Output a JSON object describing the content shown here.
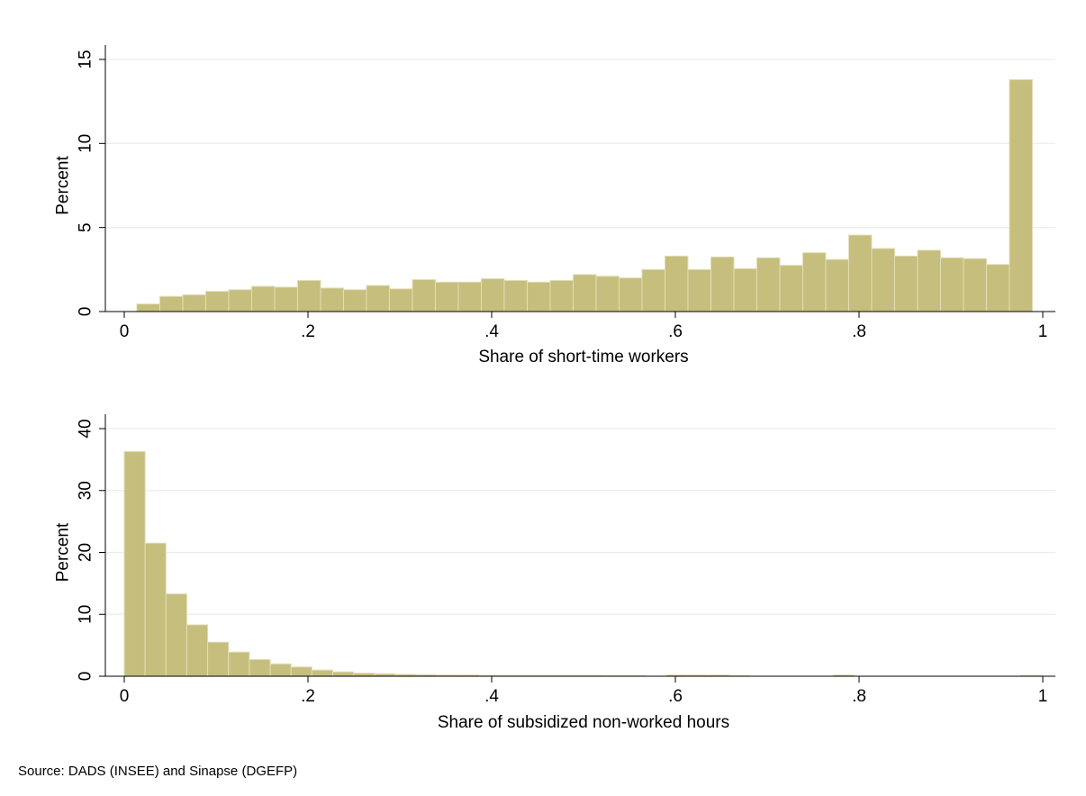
{
  "figure": {
    "source_note": "Source: DADS (INSEE) and Sinapse (DGEFP)",
    "bar_color": "#c6be7c",
    "bar_edge_color": "#e2ddb8",
    "grid_color": "#e6eef2"
  },
  "chart_data": [
    {
      "type": "bar",
      "panel": "top",
      "title": "",
      "xlabel": "Share of short-time workers",
      "ylabel": "Percent",
      "xlim": [
        0,
        1
      ],
      "ylim": [
        0,
        15
      ],
      "xticks": [
        0,
        0.2,
        0.4,
        0.6,
        0.8,
        1
      ],
      "xtick_labels": [
        "0",
        ".2",
        ".4",
        ".6",
        ".8",
        "1"
      ],
      "yticks": [
        0,
        5,
        10,
        15
      ],
      "ytick_labels": [
        "0",
        "5",
        "10",
        "15"
      ],
      "grid": true,
      "bin_start": 0.0137,
      "bin_width": 0.025,
      "values": [
        0.45,
        0.9,
        1.0,
        1.2,
        1.3,
        1.5,
        1.45,
        1.85,
        1.4,
        1.3,
        1.55,
        1.35,
        1.9,
        1.75,
        1.75,
        1.95,
        1.85,
        1.75,
        1.85,
        2.2,
        2.1,
        2.0,
        2.5,
        3.3,
        2.5,
        3.25,
        2.55,
        3.2,
        2.75,
        3.5,
        3.1,
        4.55,
        3.75,
        3.3,
        3.65,
        3.2,
        3.15,
        2.8,
        13.8
      ]
    },
    {
      "type": "bar",
      "panel": "bottom",
      "title": "",
      "xlabel": "Share of subsidized non-worked hours",
      "ylabel": "Percent",
      "xlim": [
        0,
        1
      ],
      "ylim": [
        0,
        40
      ],
      "xticks": [
        0,
        0.2,
        0.4,
        0.6,
        0.8,
        1
      ],
      "xtick_labels": [
        "0",
        ".2",
        ".4",
        ".6",
        ".8",
        "1"
      ],
      "yticks": [
        0,
        10,
        20,
        30,
        40
      ],
      "ytick_labels": [
        "0",
        "10",
        "20",
        "30",
        "40"
      ],
      "grid": true,
      "bin_start": 0.0,
      "bin_width": 0.0227,
      "values": [
        36.3,
        21.5,
        13.3,
        8.3,
        5.5,
        3.9,
        2.7,
        2.0,
        1.5,
        1.0,
        0.7,
        0.5,
        0.4,
        0.3,
        0.25,
        0.2,
        0.2,
        0.15,
        0.15,
        0.15,
        0.15,
        0.15,
        0.15,
        0.1,
        0.1,
        0,
        0.2,
        0.2,
        0.2,
        0.1,
        0,
        0,
        0,
        0,
        0.2,
        0,
        0,
        0,
        0,
        0,
        0,
        0,
        0,
        0.15,
        0
      ]
    }
  ]
}
